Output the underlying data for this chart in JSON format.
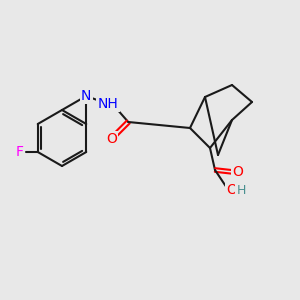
{
  "bg_color": "#e8e8e8",
  "bond_color": "#1a1a1a",
  "atom_colors": {
    "F": "#ff00ff",
    "S": "#ccaa00",
    "N": "#0000ff",
    "O": "#ff0000",
    "H": "#4a9090",
    "C": "#1a1a1a"
  },
  "bond_width": 1.5,
  "font_size": 9
}
